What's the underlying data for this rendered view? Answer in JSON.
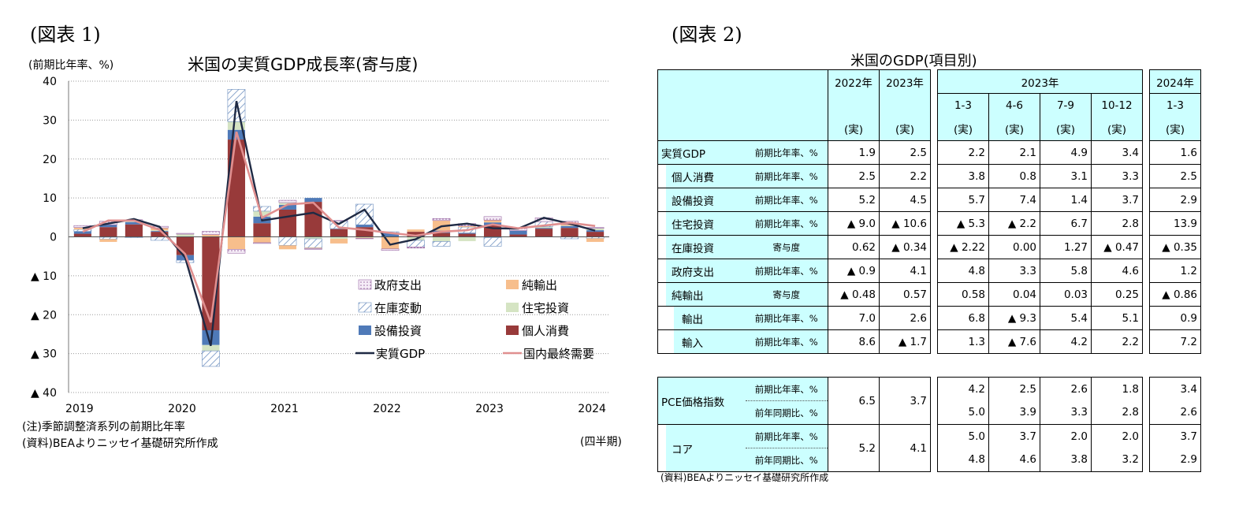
{
  "figure1": {
    "label": "(図表 1)",
    "title": "米国の実質GDP成長率(寄与度)",
    "y_unit": "(前期比年率、%)",
    "x_unit": "(四半期)",
    "note": "(注)季節調整済系列の前期比年率",
    "source": "(資料)BEAよりニッセイ基礎研究所作成"
  },
  "chart_data": {
    "type": "bar",
    "stacked": true,
    "ylim": [
      -40,
      40
    ],
    "yticks": [
      40,
      30,
      20,
      10,
      0,
      -10,
      -20,
      -30,
      -40
    ],
    "ytick_labels": [
      "40",
      "30",
      "20",
      "10",
      "0",
      "▲ 10",
      "▲ 20",
      "▲ 30",
      "▲ 40"
    ],
    "xtick_labels": [
      "2019",
      "2020",
      "2021",
      "2022",
      "2023",
      "2024"
    ],
    "categories": [
      "2019Q1",
      "2019Q2",
      "2019Q3",
      "2019Q4",
      "2020Q1",
      "2020Q2",
      "2020Q3",
      "2020Q4",
      "2021Q1",
      "2021Q2",
      "2021Q3",
      "2021Q4",
      "2022Q1",
      "2022Q2",
      "2022Q3",
      "2022Q4",
      "2023Q1",
      "2023Q2",
      "2023Q3",
      "2023Q4",
      "2024Q1"
    ],
    "grid": true,
    "legend_position": "bottom-right",
    "series": [
      {
        "name": "個人消費",
        "kind": "bar",
        "color": "#983a3a",
        "values": [
          0.8,
          2.5,
          3.2,
          1.3,
          -4.7,
          -24.0,
          25.0,
          3.5,
          7.0,
          9.0,
          2.0,
          2.5,
          0.0,
          1.3,
          1.0,
          0.8,
          3.0,
          0.6,
          2.1,
          2.3,
          1.3
        ]
      },
      {
        "name": "設備投資",
        "kind": "bar",
        "color": "#4f7ab8",
        "values": [
          0.6,
          0.6,
          0.6,
          0.2,
          -1.3,
          -3.8,
          2.5,
          1.7,
          1.2,
          1.0,
          0.1,
          0.6,
          1.0,
          0.0,
          0.6,
          0.2,
          0.7,
          1.0,
          0.2,
          0.5,
          0.4
        ]
      },
      {
        "name": "住宅投資",
        "kind": "bar",
        "color": "#d5e4c3",
        "values": [
          -0.1,
          -0.1,
          0.2,
          0.2,
          0.7,
          -1.5,
          2.1,
          1.4,
          0.6,
          -0.5,
          -0.5,
          -0.2,
          -0.1,
          -0.9,
          -1.2,
          -1.1,
          -0.2,
          -0.1,
          0.3,
          0.1,
          0.5
        ]
      },
      {
        "name": "在庫変動",
        "kind": "bar",
        "color": "#9ab4d3",
        "pattern": "hatch",
        "values": [
          0.5,
          -0.5,
          -0.2,
          -0.9,
          -0.6,
          -4.0,
          8.3,
          1.2,
          -2.2,
          -2.3,
          2.0,
          5.3,
          0.3,
          -1.7,
          -1.2,
          1.5,
          -2.2,
          0.0,
          1.3,
          -0.5,
          -0.4
        ]
      },
      {
        "name": "純輸出",
        "kind": "bar",
        "color": "#f7be8c",
        "values": [
          0.5,
          -0.7,
          0.0,
          0.6,
          0.0,
          0.6,
          -3.2,
          -1.5,
          -1.0,
          -0.2,
          -1.2,
          -0.2,
          -3.0,
          0.6,
          2.6,
          0.3,
          0.6,
          0.0,
          0.0,
          0.3,
          -0.9
        ]
      },
      {
        "name": "政府支出",
        "kind": "bar",
        "color": "#f2e6f5",
        "pattern": "dots",
        "values": [
          0.5,
          0.9,
          0.4,
          0.4,
          0.2,
          0.8,
          -1.0,
          -0.2,
          0.6,
          -0.2,
          0.1,
          -0.1,
          -0.4,
          -0.3,
          0.5,
          0.6,
          0.9,
          0.6,
          1.0,
          0.8,
          0.2
        ]
      },
      {
        "name": "実質GDP",
        "kind": "line",
        "color": "#1f2a44",
        "values": [
          2.2,
          3.4,
          4.6,
          2.6,
          -5.3,
          -28.0,
          34.9,
          4.2,
          5.2,
          6.2,
          3.3,
          7.0,
          -2.0,
          -0.6,
          2.7,
          3.4,
          2.2,
          2.1,
          4.9,
          3.4,
          1.6
        ]
      },
      {
        "name": "国内最終需要",
        "kind": "line",
        "color": "#e08f8f",
        "values": [
          1.3,
          4.2,
          4.2,
          1.8,
          -4.4,
          -22.0,
          27.0,
          4.9,
          8.3,
          8.8,
          2.4,
          1.8,
          1.0,
          0.3,
          1.3,
          1.7,
          3.2,
          2.2,
          2.9,
          3.6,
          2.8
        ]
      }
    ]
  },
  "figure2": {
    "label": "(図表 2)",
    "title": "米国のGDP(項目別)",
    "source": "(資料)BEAよりニッセイ基礎研究所作成",
    "headers": {
      "y2022": "2022年",
      "y2023": "2023年",
      "q2023": "2023年",
      "y2024": "2024年",
      "q1": "1-3",
      "q2": "4-6",
      "q3": "7-9",
      "q4": "10-12",
      "q1_2024": "1-3",
      "actual": "(実)"
    },
    "rows": [
      {
        "name": "実質GDP",
        "unit": "前期比年率、%",
        "v": [
          "1.9",
          "2.5",
          "2.2",
          "2.1",
          "4.9",
          "3.4",
          "1.6"
        ]
      },
      {
        "name": "個人消費",
        "unit": "前期比年率、%",
        "v": [
          "2.5",
          "2.2",
          "3.8",
          "0.8",
          "3.1",
          "3.3",
          "2.5"
        ]
      },
      {
        "name": "設備投資",
        "unit": "前期比年率、%",
        "v": [
          "5.2",
          "4.5",
          "5.7",
          "7.4",
          "1.4",
          "3.7",
          "2.9"
        ]
      },
      {
        "name": "住宅投資",
        "unit": "前期比年率、%",
        "v": [
          "▲ 9.0",
          "▲ 10.6",
          "▲ 5.3",
          "▲ 2.2",
          "6.7",
          "2.8",
          "13.9"
        ]
      },
      {
        "name": "在庫投資",
        "unit": "寄与度",
        "v": [
          "0.62",
          "▲ 0.34",
          "▲ 2.22",
          "0.00",
          "1.27",
          "▲ 0.47",
          "▲ 0.35"
        ]
      },
      {
        "name": "政府支出",
        "unit": "前期比年率、%",
        "v": [
          "▲ 0.9",
          "4.1",
          "4.8",
          "3.3",
          "5.8",
          "4.6",
          "1.2"
        ]
      },
      {
        "name": "純輸出",
        "unit": "寄与度",
        "v": [
          "▲ 0.48",
          "0.57",
          "0.58",
          "0.04",
          "0.03",
          "0.25",
          "▲ 0.86"
        ]
      },
      {
        "name": "輸出",
        "unit": "前期比年率、%",
        "v": [
          "7.0",
          "2.6",
          "6.8",
          "▲ 9.3",
          "5.4",
          "5.1",
          "0.9"
        ]
      },
      {
        "name": "輸入",
        "unit": "前期比年率、%",
        "v": [
          "8.6",
          "▲ 1.7",
          "1.3",
          "▲ 7.6",
          "4.2",
          "2.2",
          "7.2"
        ]
      }
    ],
    "pce": {
      "name": "PCE価格指数",
      "unit_a": "前期比年率、%",
      "unit_b": "前年同期比、%",
      "annual": [
        "6.5",
        "3.7"
      ],
      "qa": [
        "4.2",
        "2.5",
        "2.6",
        "1.8",
        "3.4"
      ],
      "qb": [
        "5.0",
        "3.9",
        "3.3",
        "2.8",
        "2.6"
      ]
    },
    "core": {
      "name": "コア",
      "unit_a": "前期比年率、%",
      "unit_b": "前年同期比、%",
      "annual": [
        "5.2",
        "4.1"
      ],
      "qa": [
        "5.0",
        "3.7",
        "2.0",
        "2.0",
        "3.7"
      ],
      "qb": [
        "4.8",
        "4.6",
        "3.8",
        "3.2",
        "2.9"
      ]
    }
  }
}
